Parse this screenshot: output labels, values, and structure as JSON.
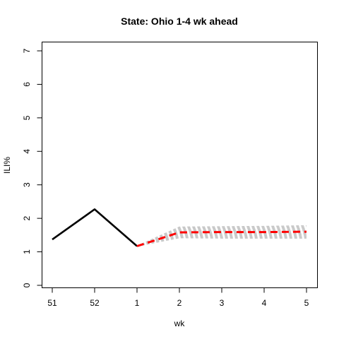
{
  "chart_data": {
    "type": "line",
    "title": "State: Ohio 1-4 wk ahead",
    "xlabel": "wk",
    "ylabel": "ILI%",
    "x_tick_labels": [
      "51",
      "52",
      "1",
      "2",
      "3",
      "4",
      "5"
    ],
    "ylim": [
      0,
      7
    ],
    "y_ticks": [
      0,
      1,
      2,
      3,
      4,
      5,
      6,
      7
    ],
    "grid": false,
    "series": [
      {
        "style": "observed",
        "color": "#000000",
        "x": [
          "51",
          "52",
          "1"
        ],
        "values": [
          1.37,
          2.27,
          1.17
        ]
      },
      {
        "style": "forecast-median",
        "color": "#ff0000",
        "x": [
          "1",
          "2",
          "3",
          "4",
          "5"
        ],
        "values": [
          1.17,
          1.58,
          1.59,
          1.59,
          1.6
        ]
      }
    ],
    "ensemble": {
      "color": "#c8c8c8",
      "x": [
        "1",
        "2",
        "3",
        "4",
        "5"
      ],
      "lower": [
        1.17,
        1.42,
        1.41,
        1.41,
        1.41
      ],
      "upper": [
        1.17,
        1.74,
        1.75,
        1.76,
        1.78
      ]
    }
  }
}
